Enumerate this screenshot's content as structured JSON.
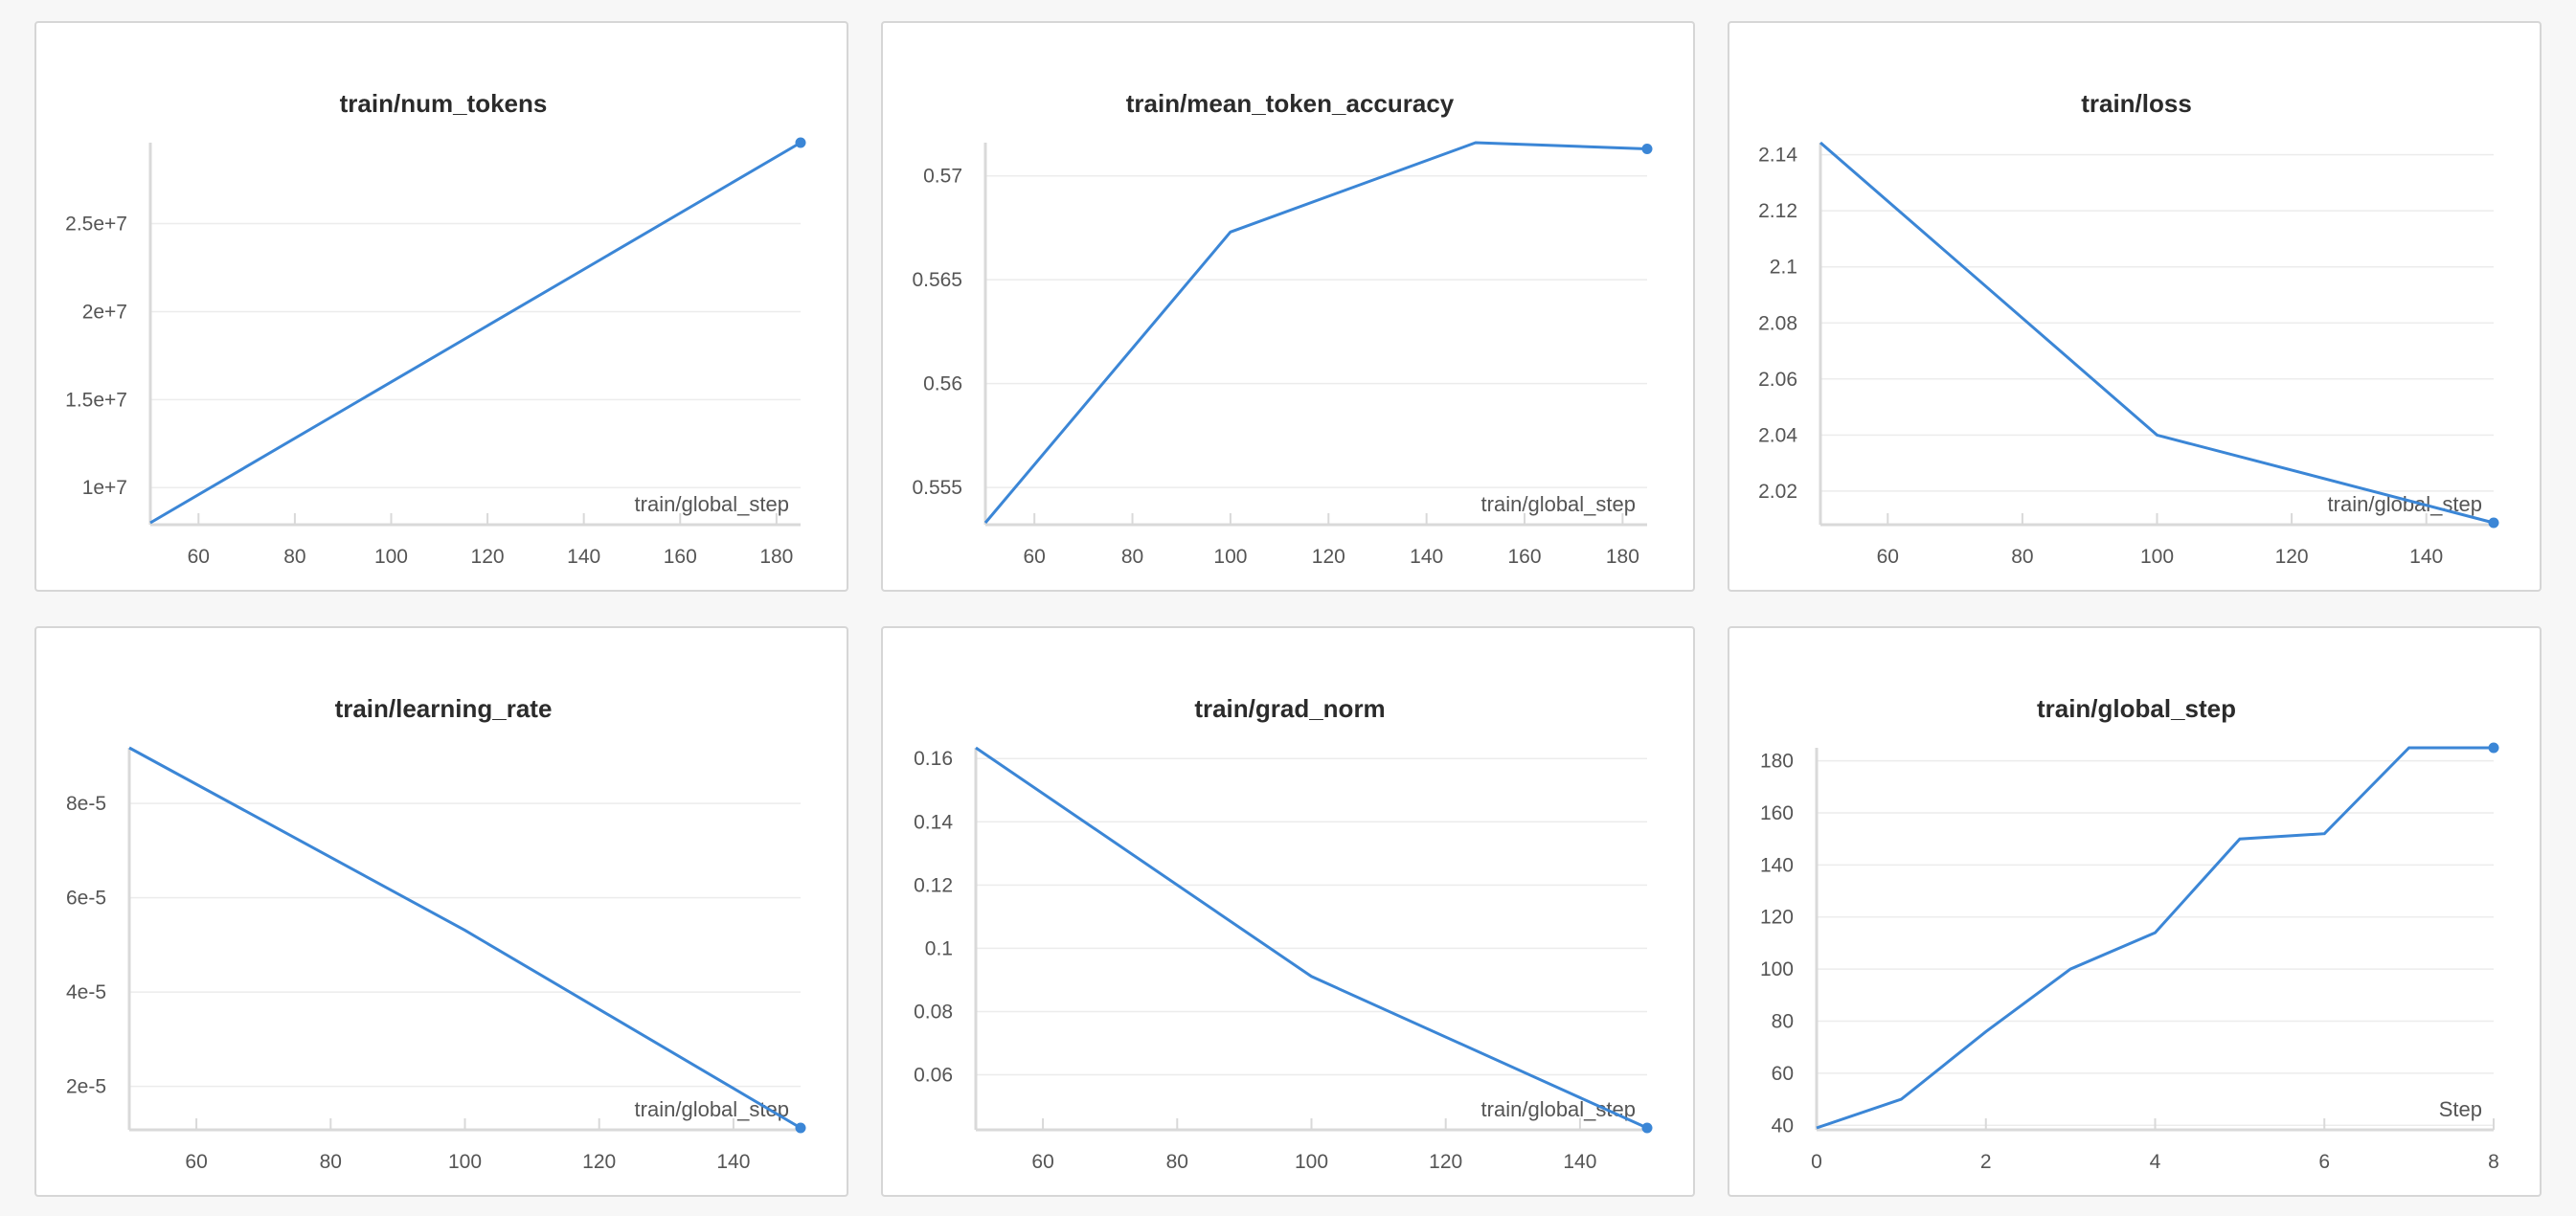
{
  "colors": {
    "series": "#3b86d6"
  },
  "chart_data": [
    {
      "type": "line",
      "title": "train/num_tokens",
      "xlabel": "train/global_step",
      "ylabel": "",
      "x": [
        50,
        185
      ],
      "series": [
        {
          "values": [
            8000000,
            29600000
          ]
        }
      ],
      "xlim": [
        50,
        185
      ],
      "ylim": [
        8000000,
        29600000
      ],
      "xticks": [
        60,
        80,
        100,
        120,
        140,
        160,
        180
      ],
      "yticks": [
        10000000,
        15000000,
        20000000,
        25000000
      ],
      "ytick_labels": [
        "1e+7",
        "1.5e+7",
        "2e+7",
        "2.5e+7"
      ],
      "grid": true,
      "end_marker": true
    },
    {
      "type": "line",
      "title": "train/mean_token_accuracy",
      "xlabel": "train/global_step",
      "ylabel": "",
      "x": [
        50,
        100,
        150,
        185
      ],
      "series": [
        {
          "values": [
            0.5533,
            0.5673,
            0.5716,
            0.5713
          ]
        }
      ],
      "xlim": [
        50,
        185
      ],
      "ylim": [
        0.5533,
        0.5716
      ],
      "xticks": [
        60,
        80,
        100,
        120,
        140,
        160,
        180
      ],
      "yticks": [
        0.555,
        0.56,
        0.565,
        0.57
      ],
      "ytick_labels": [
        "0.555",
        "0.56",
        "0.565",
        "0.57"
      ],
      "grid": true,
      "end_marker": true
    },
    {
      "type": "line",
      "title": "train/loss",
      "xlabel": "train/global_step",
      "ylabel": "",
      "x": [
        50,
        100,
        150
      ],
      "series": [
        {
          "values": [
            2.1443,
            2.04,
            2.0087
          ]
        }
      ],
      "xlim": [
        50,
        150
      ],
      "ylim": [
        2.0087,
        2.1443
      ],
      "xticks": [
        60,
        80,
        100,
        120,
        140
      ],
      "yticks": [
        2.02,
        2.04,
        2.06,
        2.08,
        2.1,
        2.12,
        2.14
      ],
      "ytick_labels": [
        "2.02",
        "2.04",
        "2.06",
        "2.08",
        "2.1",
        "2.12",
        "2.14"
      ],
      "grid": true,
      "end_marker": true
    },
    {
      "type": "line",
      "title": "train/learning_rate",
      "xlabel": "train/global_step",
      "ylabel": "",
      "x": [
        50,
        100,
        150
      ],
      "series": [
        {
          "values": [
            9.18e-05,
            5.31e-05,
            1.12e-05
          ]
        }
      ],
      "xlim": [
        50,
        150
      ],
      "ylim": [
        1.12e-05,
        9.18e-05
      ],
      "xticks": [
        60,
        80,
        100,
        120,
        140
      ],
      "yticks": [
        2e-05,
        4e-05,
        6e-05,
        8e-05
      ],
      "ytick_labels": [
        "2e-5",
        "4e-5",
        "6e-5",
        "8e-5"
      ],
      "grid": true,
      "end_marker": true
    },
    {
      "type": "line",
      "title": "train/grad_norm",
      "xlabel": "train/global_step",
      "ylabel": "",
      "x": [
        50,
        100,
        150
      ],
      "series": [
        {
          "values": [
            0.1634,
            0.0911,
            0.0432
          ]
        }
      ],
      "xlim": [
        50,
        150
      ],
      "ylim": [
        0.0432,
        0.1634
      ],
      "xticks": [
        60,
        80,
        100,
        120,
        140
      ],
      "yticks": [
        0.06,
        0.08,
        0.1,
        0.12,
        0.14,
        0.16
      ],
      "ytick_labels": [
        "0.06",
        "0.08",
        "0.1",
        "0.12",
        "0.14",
        "0.16"
      ],
      "grid": true,
      "end_marker": true
    },
    {
      "type": "line",
      "title": "train/global_step",
      "xlabel": "Step",
      "ylabel": "",
      "x": [
        0,
        1,
        2,
        3,
        4,
        5,
        6,
        7,
        8
      ],
      "series": [
        {
          "values": [
            39,
            50,
            76,
            100,
            114,
            150,
            152,
            185,
            185
          ]
        }
      ],
      "xlim": [
        0,
        8
      ],
      "ylim": [
        39,
        185
      ],
      "xticks": [
        0,
        2,
        4,
        6,
        8
      ],
      "yticks": [
        40,
        60,
        80,
        100,
        120,
        140,
        160,
        180
      ],
      "ytick_labels": [
        "40",
        "60",
        "80",
        "100",
        "120",
        "140",
        "160",
        "180"
      ],
      "grid": true,
      "end_marker": true
    }
  ]
}
